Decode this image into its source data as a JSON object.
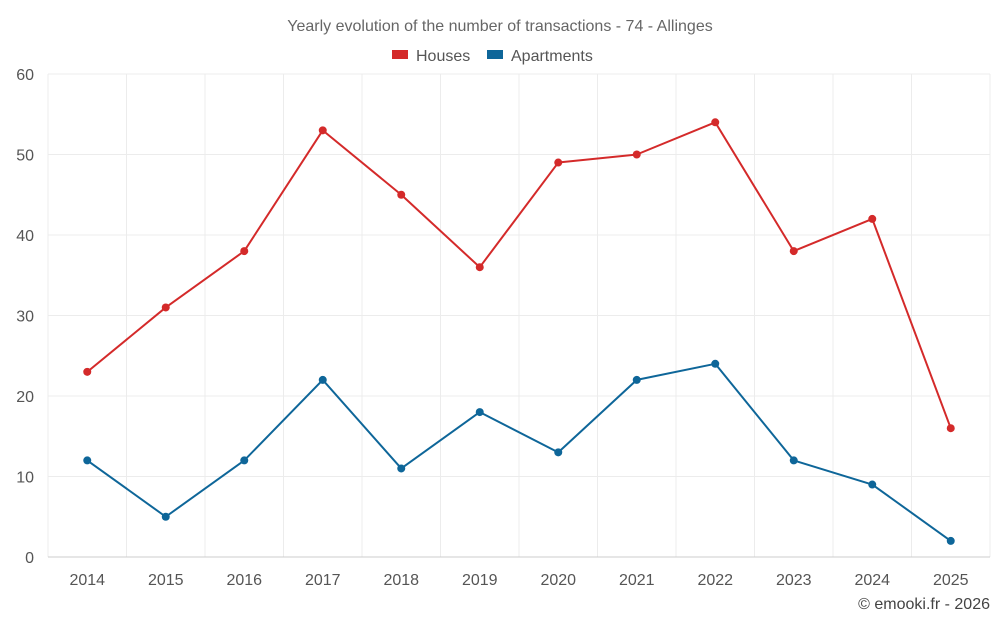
{
  "chart_data": {
    "type": "line",
    "title": "Yearly evolution of the number of transactions - 74 - Allinges",
    "categories": [
      "2014",
      "2015",
      "2016",
      "2017",
      "2018",
      "2019",
      "2020",
      "2021",
      "2022",
      "2023",
      "2024",
      "2025"
    ],
    "series": [
      {
        "name": "Houses",
        "color": "#d42a2a",
        "values": [
          23,
          31,
          38,
          53,
          45,
          36,
          49,
          50,
          54,
          38,
          42,
          16
        ]
      },
      {
        "name": "Apartments",
        "color": "#0e6699",
        "values": [
          12,
          5,
          12,
          22,
          11,
          18,
          13,
          22,
          24,
          12,
          9,
          2
        ]
      }
    ],
    "ylim": [
      0,
      60
    ],
    "yticks": [
      0,
      10,
      20,
      30,
      40,
      50,
      60
    ],
    "grid": true,
    "legend_position": "top-center",
    "xlabel": "",
    "ylabel": ""
  },
  "credit": "© emooki.fr - 2026"
}
